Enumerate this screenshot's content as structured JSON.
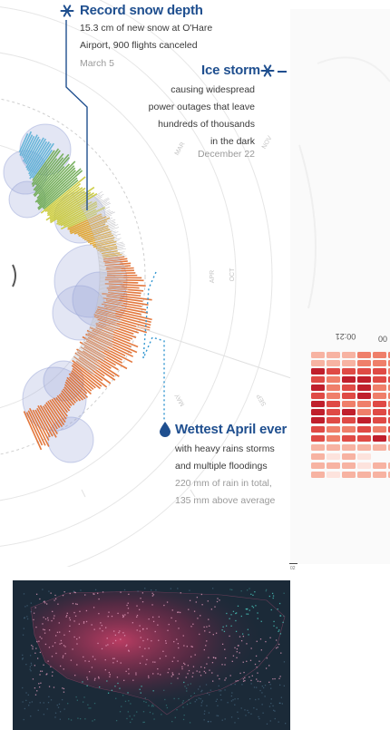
{
  "chart_data": [
    {
      "type": "radial",
      "month_ticks": [
        "MAR",
        "APR",
        "MAY",
        "NOV",
        "OCT",
        "SEP"
      ],
      "annotations": [
        {
          "id": "snow",
          "title": "Record snow depth",
          "lines": [
            "15.3 cm of new snow at O'Hare",
            "Airport, 900 flights canceled"
          ],
          "date": "March 5",
          "icon": "snowflake-icon"
        },
        {
          "id": "ice",
          "title": "Ice storm",
          "lines": [
            "causing widespread",
            "power outages that leave",
            "hundreds of thousands",
            "in the dark"
          ],
          "date": "December 22",
          "icon": "snowflake-icon"
        },
        {
          "id": "rain",
          "title": "Wettest April ever",
          "lines": [
            "with heavy rains storms",
            "and multiple floodings"
          ],
          "details": [
            "220 mm of rain in total,",
            "135 mm above average"
          ],
          "icon": "raindrop-icon"
        }
      ],
      "bar_colors": [
        "#2f80c6",
        "#5ab0d6",
        "#6aa84f",
        "#c9c934",
        "#e0a020",
        "#e06a2a"
      ],
      "bubble_color": "#9aa6d8"
    },
    {
      "type": "heatmap",
      "tick_labels": [
        "00:21",
        "00"
      ],
      "color_scale": [
        "#fde3dd",
        "#f7b3a2",
        "#ef7f6a",
        "#df4a45",
        "#c01f2c"
      ]
    }
  ],
  "footer": {
    "mark": "02"
  },
  "map": {
    "background": "#1b2a38",
    "accent": "#c23a5b"
  }
}
